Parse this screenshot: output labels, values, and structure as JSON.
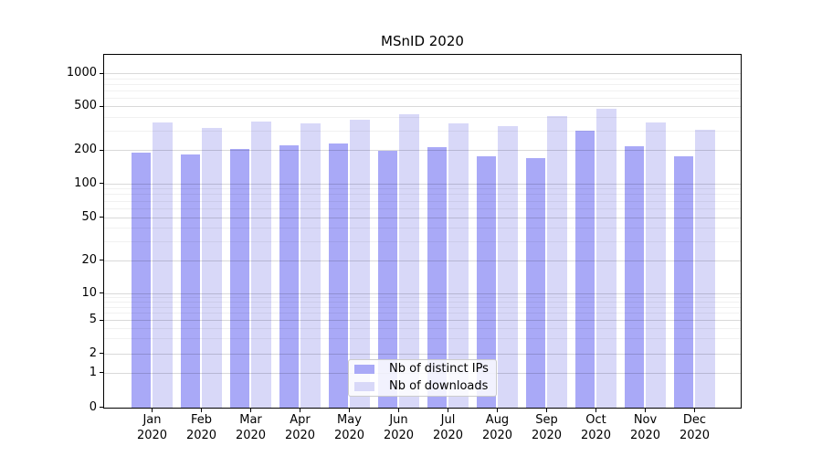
{
  "title": "MSnID 2020",
  "chart_data": {
    "type": "bar",
    "title": "MSnID 2020",
    "categories": [
      "Jan 2020",
      "Feb 2020",
      "Mar 2020",
      "Apr 2020",
      "May 2020",
      "Jun 2020",
      "Jul 2020",
      "Aug 2020",
      "Sep 2020",
      "Oct 2020",
      "Nov 2020",
      "Dec 2020"
    ],
    "series": [
      {
        "name": "Nb of distinct IPs",
        "color": "#a9a9f7",
        "values": [
          190,
          181,
          205,
          220,
          230,
          195,
          213,
          176,
          170,
          297,
          217,
          174
        ]
      },
      {
        "name": "Nb of downloads",
        "color": "#d8d8f8",
        "values": [
          358,
          316,
          365,
          350,
          376,
          421,
          348,
          333,
          406,
          473,
          355,
          305
        ]
      }
    ],
    "xlabel": "",
    "ylabel": "",
    "yscale": "symlog",
    "yticks": [
      0,
      1,
      2,
      5,
      10,
      20,
      50,
      100,
      200,
      500,
      1000
    ],
    "ylim": [
      0,
      1450
    ],
    "grid": true,
    "legend_position": "lower center",
    "colors": {
      "distinct_ips_bar": "#a9a9f7",
      "downloads_bar": "#d8d8f8",
      "axis": "#000000",
      "grid_major": "#d9d9d9",
      "grid_minor": "#f0f0f0",
      "background": "#ffffff"
    }
  }
}
